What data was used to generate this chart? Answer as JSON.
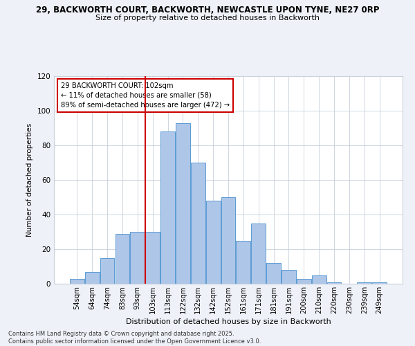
{
  "title_line1": "29, BACKWORTH COURT, BACKWORTH, NEWCASTLE UPON TYNE, NE27 0RP",
  "title_line2": "Size of property relative to detached houses in Backworth",
  "xlabel": "Distribution of detached houses by size in Backworth",
  "ylabel": "Number of detached properties",
  "categories": [
    "54sqm",
    "64sqm",
    "74sqm",
    "83sqm",
    "93sqm",
    "103sqm",
    "113sqm",
    "122sqm",
    "132sqm",
    "142sqm",
    "152sqm",
    "161sqm",
    "171sqm",
    "181sqm",
    "191sqm",
    "200sqm",
    "210sqm",
    "220sqm",
    "230sqm",
    "239sqm",
    "249sqm"
  ],
  "values": [
    3,
    7,
    15,
    29,
    30,
    30,
    88,
    93,
    70,
    48,
    50,
    25,
    35,
    12,
    8,
    3,
    5,
    1,
    0,
    1,
    1
  ],
  "bar_color": "#aec6e8",
  "bar_edge_color": "#5b9bd5",
  "highlight_color": "#cc0000",
  "ylim": [
    0,
    120
  ],
  "yticks": [
    0,
    20,
    40,
    60,
    80,
    100,
    120
  ],
  "annotation_line1": "29 BACKWORTH COURT: 102sqm",
  "annotation_line2": "← 11% of detached houses are smaller (58)",
  "annotation_line3": "89% of semi-detached houses are larger (472) →",
  "footer_line1": "Contains HM Land Registry data © Crown copyright and database right 2025.",
  "footer_line2": "Contains public sector information licensed under the Open Government Licence v3.0.",
  "bg_color": "#eef2f8",
  "plot_bg_color": "#ffffff"
}
